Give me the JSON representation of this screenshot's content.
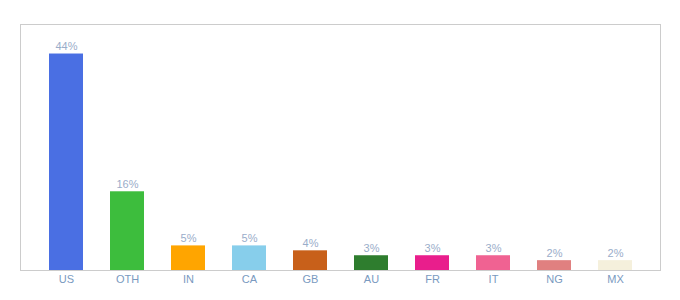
{
  "chart_data": {
    "type": "bar",
    "categories": [
      "US",
      "OTH",
      "IN",
      "CA",
      "GB",
      "AU",
      "FR",
      "IT",
      "NG",
      "MX"
    ],
    "values": [
      44,
      16,
      5,
      5,
      4,
      3,
      3,
      3,
      2,
      2
    ],
    "value_labels": [
      "44%",
      "16%",
      "5%",
      "5%",
      "4%",
      "3%",
      "3%",
      "3%",
      "2%",
      "2%"
    ],
    "colors": [
      "#4A6FE3",
      "#3DBD3D",
      "#FFA500",
      "#87CEEB",
      "#C8601A",
      "#2E7D2E",
      "#E91E8C",
      "#F06292",
      "#E08080",
      "#F5F0DC"
    ],
    "ylim": [
      0,
      50
    ],
    "data_labels": true,
    "tick_labels": "x",
    "grid": false
  }
}
